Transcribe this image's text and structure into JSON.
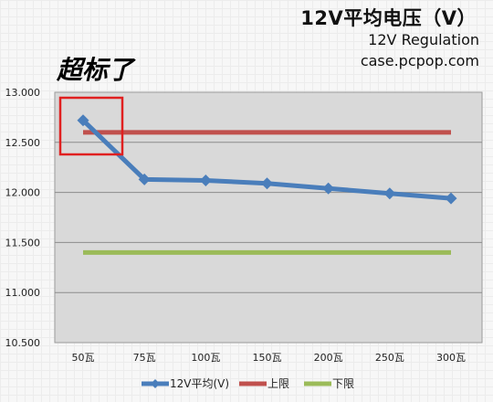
{
  "chart_data": {
    "type": "line",
    "title": "12V平均电压（V）",
    "subtitle": "12V Regulation",
    "source": "case.pcpop.com",
    "annotation": "超标了",
    "categories": [
      "50瓦",
      "75瓦",
      "100瓦",
      "150瓦",
      "200瓦",
      "250瓦",
      "300瓦"
    ],
    "y_ticks": [
      "13.000",
      "12.500",
      "12.000",
      "11.500",
      "11.000",
      "10.500"
    ],
    "ylim": [
      10.5,
      13.0
    ],
    "grid": true,
    "legend_position": "bottom",
    "series": [
      {
        "name": "12V平均(V)",
        "color": "#4a7ebb",
        "marker": "diamond",
        "values": [
          12.72,
          12.13,
          12.12,
          12.09,
          12.04,
          11.99,
          11.94
        ]
      },
      {
        "name": "上限",
        "color": "#c0504d",
        "values": [
          12.6,
          12.6,
          12.6,
          12.6,
          12.6,
          12.6,
          12.6
        ]
      },
      {
        "name": "下限",
        "color": "#9bbb59",
        "values": [
          11.4,
          11.4,
          11.4,
          11.4,
          11.4,
          11.4,
          11.4
        ]
      }
    ],
    "highlight_color": "#e02020"
  }
}
